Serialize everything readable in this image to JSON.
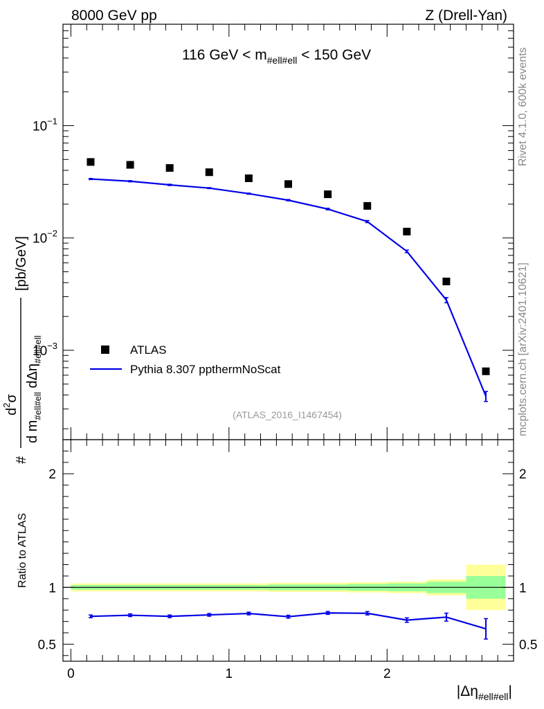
{
  "header": {
    "left": "8000 GeV pp",
    "right": "Z (Drell-Yan)"
  },
  "side_labels": {
    "rivet": "Rivet 4.1.0,  600k events",
    "mcplots": "mcplots.cern.ch [arXiv:2401.10621]"
  },
  "colors": {
    "data": "#000000",
    "mc": "#0000e6",
    "band_outer": "#ffff99",
    "band_inner": "#99ff99"
  },
  "chart_data": [
    {
      "type": "scatter",
      "panel": "main",
      "title": "116 GeV < m_#ell#ell < 150 GeV",
      "title_parts": {
        "pre": "116 GeV < m",
        "sub": "#ell#ell",
        "post": " < 150 GeV"
      },
      "ylabel": "# d²σ / d m_#ell#ell dΔη_#ell#ell [pb/GeV]",
      "ylabel_parts": {
        "hash": "#",
        "num": "d",
        "num_sup": "2",
        "sigma": "σ",
        "den1": "d m",
        "den_sub1": "#ell#ell",
        "den2": " dΔη",
        "den_sub2": "#ell#ell",
        "unit": "[pb/GeV]"
      },
      "yscale": "log",
      "ylim": [
        0.00016,
        0.8
      ],
      "xlim": [
        -0.05,
        2.8
      ],
      "y_ticks": [
        {
          "value": 0.1,
          "base": "10",
          "exp": "−1"
        },
        {
          "value": 0.01,
          "base": "10",
          "exp": "−2"
        },
        {
          "value": 0.001,
          "base": "10",
          "exp": "−3"
        }
      ],
      "source_label": "(ATLAS_2016_I1467454)",
      "legend": {
        "placement": "bottom-left",
        "entries": [
          "ATLAS",
          "Pythia 8.307 ppthermNoScat"
        ]
      },
      "series": [
        {
          "name": "ATLAS",
          "style": "markers",
          "x": [
            0.125,
            0.375,
            0.625,
            0.875,
            1.125,
            1.375,
            1.625,
            1.875,
            2.125,
            2.375,
            2.625
          ],
          "y": [
            0.0475,
            0.0448,
            0.042,
            0.0385,
            0.034,
            0.0302,
            0.0245,
            0.0193,
            0.0114,
            0.0041,
            0.00065
          ]
        },
        {
          "name": "Pythia 8.307 ppthermNoScat",
          "style": "line",
          "x": [
            0.125,
            0.375,
            0.625,
            0.875,
            1.125,
            1.375,
            1.625,
            1.875,
            2.125,
            2.375,
            2.625
          ],
          "y": [
            0.0335,
            0.032,
            0.0297,
            0.0278,
            0.0248,
            0.0217,
            0.0181,
            0.014,
            0.0076,
            0.0028,
            0.00039
          ],
          "err": [
            0.0004,
            0.0004,
            0.0004,
            0.0003,
            0.0003,
            0.0003,
            0.0003,
            0.0003,
            0.0002,
            0.00015,
            4e-05
          ]
        }
      ]
    },
    {
      "type": "line",
      "panel": "ratio",
      "ylabel": "Ratio to ATLAS",
      "xlabel": "|Δη_#ell#ell|",
      "xlabel_parts": {
        "pre": "|Δη",
        "sub": "#ell#ell",
        "post": "|"
      },
      "ylim": [
        0.35,
        2.3
      ],
      "xlim": [
        -0.05,
        2.8
      ],
      "y_ticks": [
        0.5,
        1,
        2
      ],
      "y_tick_labels": [
        "0.5",
        "1",
        "2"
      ],
      "x_ticks": [
        0,
        1,
        2
      ],
      "x_tick_labels": [
        "0",
        "1",
        "2"
      ],
      "bin_edges": [
        0,
        0.25,
        0.5,
        0.75,
        1.0,
        1.25,
        1.5,
        1.75,
        2.0,
        2.25,
        2.5,
        2.75
      ],
      "band_outer": [
        0.035,
        0.035,
        0.035,
        0.035,
        0.035,
        0.04,
        0.04,
        0.045,
        0.05,
        0.07,
        0.2
      ],
      "band_inner": [
        0.02,
        0.02,
        0.02,
        0.02,
        0.02,
        0.025,
        0.025,
        0.03,
        0.035,
        0.05,
        0.1
      ],
      "series": [
        {
          "name": "Pythia 8.307 ppthermNoScat",
          "x": [
            0.125,
            0.375,
            0.625,
            0.875,
            1.125,
            1.375,
            1.625,
            1.875,
            2.125,
            2.375,
            2.625
          ],
          "y": [
            0.745,
            0.755,
            0.745,
            0.758,
            0.77,
            0.742,
            0.775,
            0.772,
            0.712,
            0.738,
            0.635
          ],
          "err": [
            0.012,
            0.012,
            0.012,
            0.012,
            0.012,
            0.013,
            0.013,
            0.015,
            0.02,
            0.035,
            0.09
          ]
        }
      ]
    }
  ]
}
